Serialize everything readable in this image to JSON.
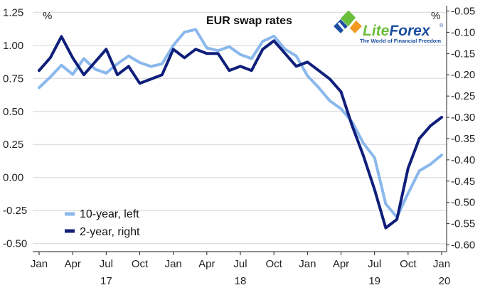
{
  "chart_data": {
    "type": "line",
    "title": "EUR swap rates",
    "left_axis": {
      "unit": "%",
      "ticks": [
        "1.25",
        "1.00",
        "0.75",
        "0.50",
        "0.25",
        "0.00",
        "-0.25",
        "-0.50"
      ],
      "range": [
        -0.55,
        1.3
      ]
    },
    "right_axis": {
      "unit": "%",
      "ticks": [
        "-0.05",
        "-0.10",
        "-0.15",
        "-0.20",
        "-0.25",
        "-0.30",
        "-0.35",
        "-0.40",
        "-0.45",
        "-0.50",
        "-0.55",
        "-0.60"
      ],
      "range": [
        -0.6125,
        -0.0375
      ]
    },
    "x_axis": {
      "months": [
        "Jan",
        "Apr",
        "Jul",
        "Oct",
        "Jan",
        "Apr",
        "Jul",
        "Oct",
        "Jan",
        "Apr",
        "Jul",
        "Oct",
        "Jan"
      ],
      "years": [
        "17",
        "18",
        "19",
        "20"
      ],
      "range": [
        "2017-01",
        "2020-01"
      ]
    },
    "grid": true,
    "legend_position": "bottom-left",
    "series": [
      {
        "name": "10-year, left",
        "axis": "left",
        "color": "#8ab8ec",
        "x": [
          "2017-01",
          "2017-02",
          "2017-03",
          "2017-04",
          "2017-05",
          "2017-06",
          "2017-07",
          "2017-08",
          "2017-09",
          "2017-10",
          "2017-11",
          "2017-12",
          "2018-01",
          "2018-02",
          "2018-03",
          "2018-04",
          "2018-05",
          "2018-06",
          "2018-07",
          "2018-08",
          "2018-09",
          "2018-10",
          "2018-11",
          "2018-12",
          "2019-01",
          "2019-02",
          "2019-03",
          "2019-04",
          "2019-05",
          "2019-06",
          "2019-07",
          "2019-08",
          "2019-09",
          "2019-10",
          "2019-11",
          "2019-12",
          "2020-01"
        ],
        "values": [
          0.68,
          0.76,
          0.85,
          0.78,
          0.9,
          0.82,
          0.79,
          0.86,
          0.92,
          0.87,
          0.84,
          0.86,
          1.0,
          1.1,
          1.12,
          0.98,
          0.96,
          0.99,
          0.93,
          0.9,
          1.03,
          1.07,
          0.97,
          0.92,
          0.77,
          0.68,
          0.58,
          0.52,
          0.42,
          0.26,
          0.15,
          -0.2,
          -0.3,
          -0.12,
          0.05,
          0.1,
          0.17
        ]
      },
      {
        "name": "2-year, right",
        "axis": "right",
        "color": "#0f1f7a",
        "x": [
          "2017-01",
          "2017-02",
          "2017-03",
          "2017-04",
          "2017-05",
          "2017-06",
          "2017-07",
          "2017-08",
          "2017-09",
          "2017-10",
          "2017-11",
          "2017-12",
          "2018-01",
          "2018-02",
          "2018-03",
          "2018-04",
          "2018-05",
          "2018-06",
          "2018-07",
          "2018-08",
          "2018-09",
          "2018-10",
          "2018-11",
          "2018-12",
          "2019-01",
          "2019-02",
          "2019-03",
          "2019-04",
          "2019-05",
          "2019-06",
          "2019-07",
          "2019-08",
          "2019-09",
          "2019-10",
          "2019-11",
          "2019-12",
          "2020-01"
        ],
        "values": [
          -0.19,
          -0.16,
          -0.11,
          -0.16,
          -0.2,
          -0.17,
          -0.14,
          -0.2,
          -0.18,
          -0.22,
          -0.21,
          -0.2,
          -0.14,
          -0.16,
          -0.14,
          -0.15,
          -0.15,
          -0.19,
          -0.18,
          -0.19,
          -0.14,
          -0.12,
          -0.15,
          -0.18,
          -0.17,
          -0.19,
          -0.21,
          -0.24,
          -0.32,
          -0.39,
          -0.47,
          -0.56,
          -0.54,
          -0.42,
          -0.35,
          -0.32,
          -0.3
        ]
      }
    ]
  },
  "logo": {
    "brand_lite": "Lite",
    "brand_forex": "Forex",
    "registered": "®",
    "tagline": "The World of Financial Freedom",
    "colors": {
      "green": "#6cbf3b",
      "blue": "#1a4fa0",
      "orange": "#f29a1f"
    }
  }
}
